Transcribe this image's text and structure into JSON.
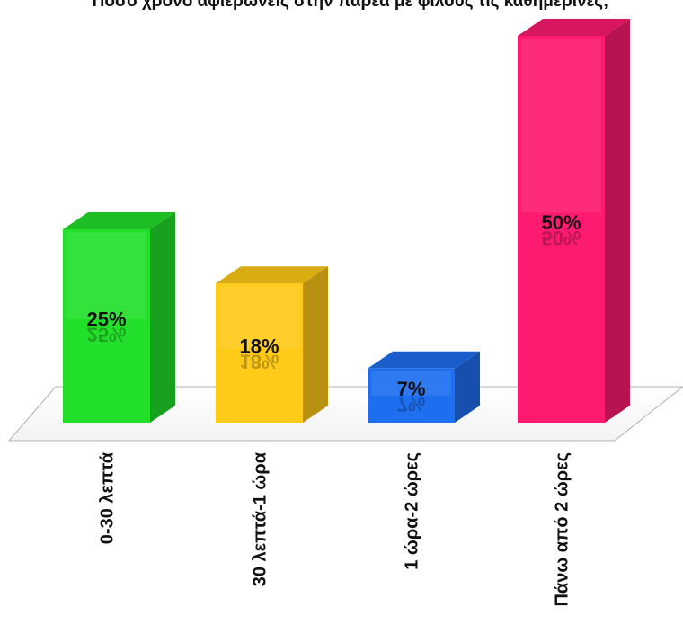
{
  "title": "Πόσο χρόνο αφιερώνεις στην παρέα με φίλους τις καθημερινές;",
  "chart_data": {
    "type": "bar",
    "title": "Πόσο χρόνο αφιερώνεις στην παρέα με φίλους τις καθημερινές;",
    "categories": [
      "0-30 λεπτά",
      "30 λεπτά-1 ώρα",
      "1 ώρα-2 ώρες",
      "Πάνω από 2 ώρες"
    ],
    "values": [
      25,
      18,
      7,
      50
    ],
    "value_labels": [
      "25%",
      "18%",
      "7%",
      "50%"
    ],
    "xlabel": "",
    "ylabel": "",
    "ylim": [
      0,
      50
    ],
    "grid": false,
    "legend": "none",
    "colors": [
      "#22e02a",
      "#ffca18",
      "#1e6ef0",
      "#fe1a70"
    ]
  }
}
